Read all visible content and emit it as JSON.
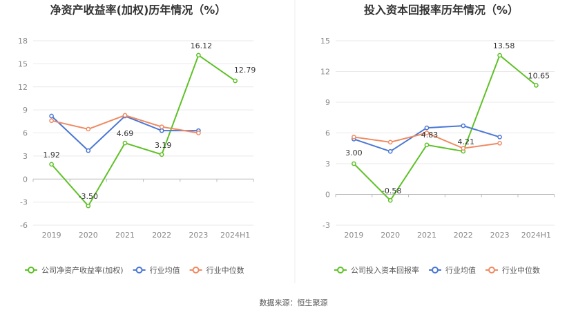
{
  "source_label": "数据来源：恒生聚源",
  "chart_data": [
    {
      "type": "line",
      "title": "净资产收益率(加权)历年情况（%）",
      "categories": [
        "2019",
        "2020",
        "2021",
        "2022",
        "2023",
        "2024H1"
      ],
      "y_ticks": [
        -6,
        -3,
        0,
        3,
        6,
        9,
        12,
        15,
        18
      ],
      "ylim": [
        -6,
        18
      ],
      "grid": true,
      "legend_position": "bottom",
      "series": [
        {
          "name": "公司净资产收益率(加权)",
          "color": "#5ec127",
          "values": [
            1.92,
            -3.5,
            4.69,
            3.19,
            16.12,
            12.79
          ],
          "labels": [
            "1.92",
            "-3.50",
            "4.69",
            "3.19",
            "16.12",
            "12.79"
          ]
        },
        {
          "name": "行业均值",
          "color": "#4a77d4",
          "values": [
            8.2,
            3.7,
            8.2,
            6.3,
            6.3,
            null
          ]
        },
        {
          "name": "行业中位数",
          "color": "#ef8a62",
          "values": [
            7.6,
            6.5,
            8.3,
            6.8,
            6.0,
            null
          ]
        }
      ]
    },
    {
      "type": "line",
      "title": "投入资本回报率历年情况（%）",
      "categories": [
        "2019",
        "2020",
        "2021",
        "2022",
        "2023",
        "2024H1"
      ],
      "y_ticks": [
        -3,
        0,
        3,
        6,
        9,
        12,
        15
      ],
      "ylim": [
        -3,
        15
      ],
      "grid": true,
      "legend_position": "bottom",
      "series": [
        {
          "name": "公司投入资本回报率",
          "color": "#5ec127",
          "values": [
            3.0,
            -0.58,
            4.83,
            4.21,
            13.58,
            10.65
          ],
          "labels": [
            "3.00",
            "-0.58",
            "4.83",
            "4.21",
            "13.58",
            "10.65"
          ]
        },
        {
          "name": "行业均值",
          "color": "#4a77d4",
          "values": [
            5.4,
            4.2,
            6.5,
            6.7,
            5.6,
            null
          ]
        },
        {
          "name": "行业中位数",
          "color": "#ef8a62",
          "values": [
            5.6,
            5.1,
            6.0,
            4.5,
            5.0,
            null
          ]
        }
      ]
    }
  ]
}
